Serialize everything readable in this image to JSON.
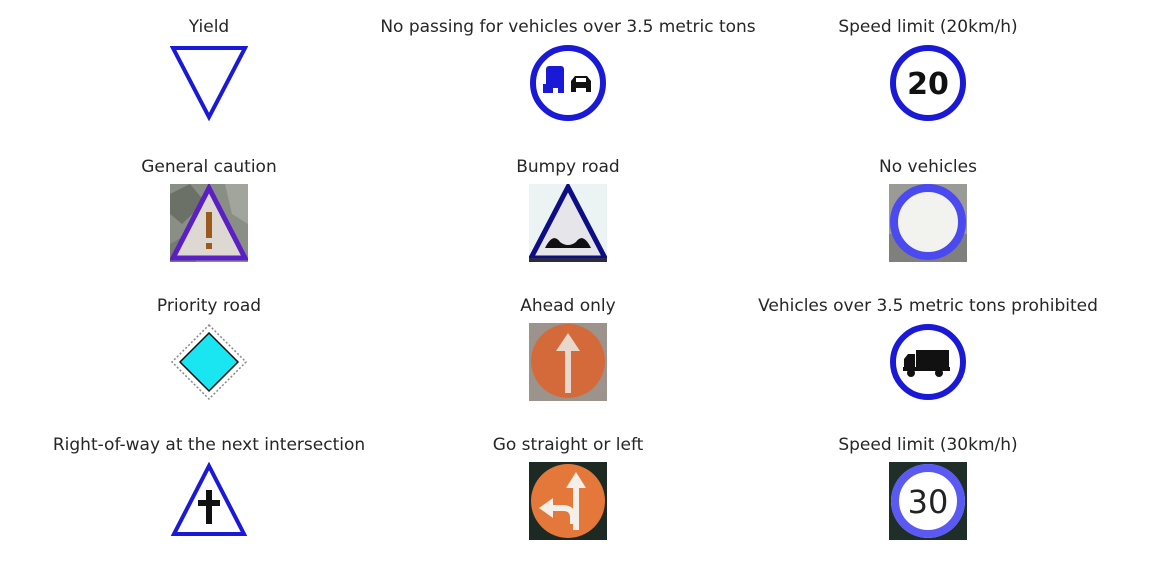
{
  "signs": [
    {
      "label": "Yield",
      "icon": "yield-sign-icon"
    },
    {
      "label": "No passing for vehicles over 3.5 metric tons",
      "icon": "no-passing-trucks-sign-icon"
    },
    {
      "label": "Speed limit (20km/h)",
      "icon": "speed-limit-20-sign-icon",
      "text": "20"
    },
    {
      "label": "General caution",
      "icon": "general-caution-sign-icon"
    },
    {
      "label": "Bumpy road",
      "icon": "bumpy-road-sign-icon"
    },
    {
      "label": "No vehicles",
      "icon": "no-vehicles-sign-icon"
    },
    {
      "label": "Priority road",
      "icon": "priority-road-sign-icon"
    },
    {
      "label": "Ahead only",
      "icon": "ahead-only-sign-icon"
    },
    {
      "label": "Vehicles over 3.5 metric tons prohibited",
      "icon": "no-trucks-sign-icon"
    },
    {
      "label": "Right-of-way at the next intersection",
      "icon": "right-of-way-sign-icon"
    },
    {
      "label": "Go straight or left",
      "icon": "go-straight-or-left-sign-icon"
    },
    {
      "label": "Speed limit (30km/h)",
      "icon": "speed-limit-30-sign-icon",
      "text": "30"
    }
  ],
  "colors": {
    "sign_blue": "#1a1ad6",
    "label_text": "#262626",
    "priority_fill": "#19e6f0",
    "orange": "#e4773a"
  }
}
